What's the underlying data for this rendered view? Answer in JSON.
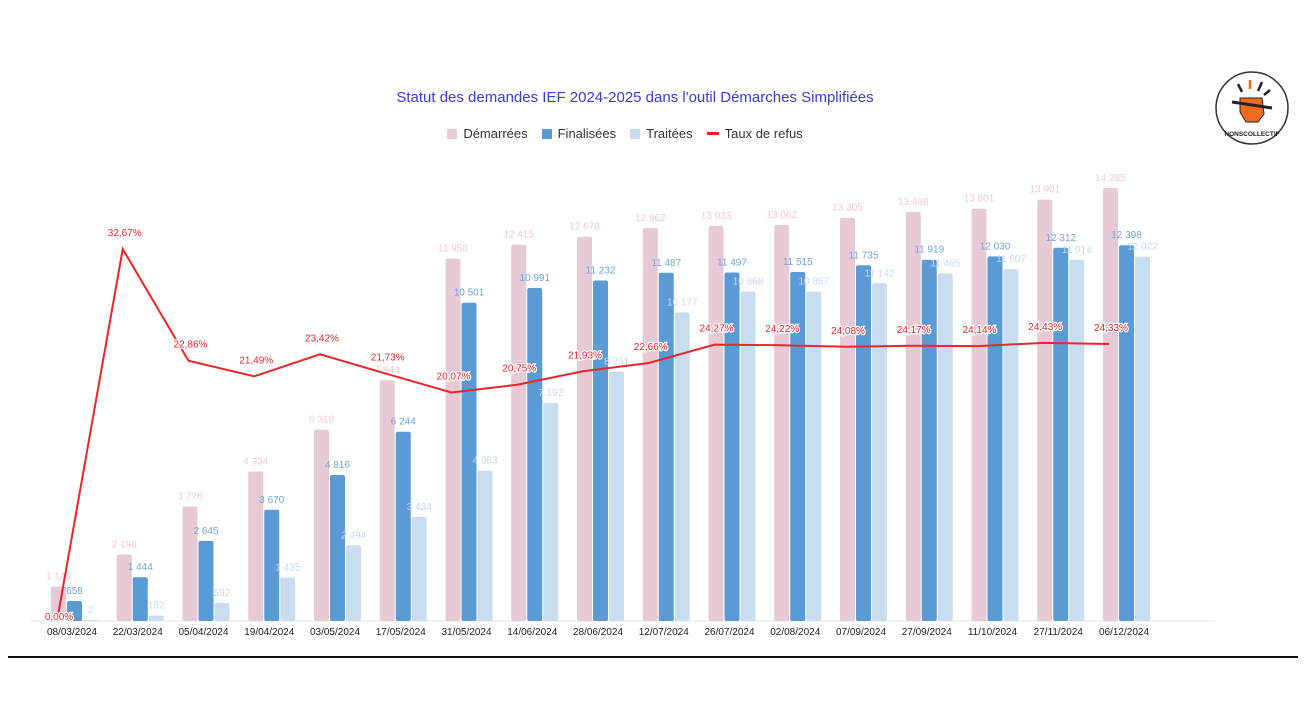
{
  "chart_data": {
    "type": "bar",
    "title": "Statut des demandes IEF 2024-2025 dans l'outil Démarches Simplifiées",
    "xlabel": "",
    "ylabel": "",
    "legend_position": "top",
    "grid": false,
    "categories": [
      "08/03/2024",
      "22/03/2024",
      "05/04/2024",
      "19/04/2024",
      "03/05/2024",
      "17/05/2024",
      "31/05/2024",
      "14/06/2024",
      "28/06/2024",
      "12/07/2024",
      "26/07/2024",
      "02/08/2024",
      "07/09/2024",
      "27/09/2024",
      "11/10/2024",
      "27/11/2024",
      "06/12/2024"
    ],
    "series": [
      {
        "name": "Démarrées",
        "type": "bar",
        "color": "#e8c9d6",
        "label_color": "#efc9d4",
        "values": [
          1143,
          2198,
          3776,
          4934,
          6310,
          7944,
          11958,
          12415,
          12678,
          12962,
          13033,
          13062,
          13305,
          13498,
          13601,
          13901,
          14285
        ]
      },
      {
        "name": "Finalisées",
        "type": "bar",
        "color": "#5b9bd5",
        "label_color": "#6fa6dc",
        "values": [
          658,
          1444,
          2645,
          3670,
          4816,
          6244,
          10501,
          10991,
          11232,
          11487,
          11497,
          11515,
          11735,
          11919,
          12030,
          12312,
          12398
        ]
      },
      {
        "name": "Traitées",
        "type": "bar",
        "color": "#c9ddf0",
        "label_color": "#c7d9ee",
        "values": [
          2,
          182,
          592,
          1435,
          2494,
          3434,
          4963,
          7192,
          8231,
          10177,
          10868,
          10867,
          11142,
          11465,
          11607,
          11914,
          12022
        ]
      },
      {
        "name": "Taux de refus",
        "type": "line",
        "color": "#e8262b",
        "unit": "%",
        "values": [
          0.0,
          32.67,
          22.86,
          21.49,
          23.42,
          21.73,
          20.07,
          20.75,
          21.93,
          22.66,
          24.27,
          24.22,
          24.08,
          24.17,
          24.14,
          24.43,
          24.33
        ],
        "labels": [
          "0,00%",
          "32,67%",
          "22,86%",
          "21,49%",
          "23,42%",
          "21,73%",
          "20,07%",
          "20,75%",
          "21,93%",
          "22,66%",
          "24,27%",
          "24,22%",
          "24,08%",
          "24,17%",
          "24,14%",
          "24,43%",
          "24,33%"
        ]
      }
    ],
    "ylim": [
      0,
      14500
    ],
    "y2lim": [
      0,
      38
    ]
  },
  "logo": {
    "text": "NONSCOLLECTIF",
    "color": "#f26b21"
  }
}
